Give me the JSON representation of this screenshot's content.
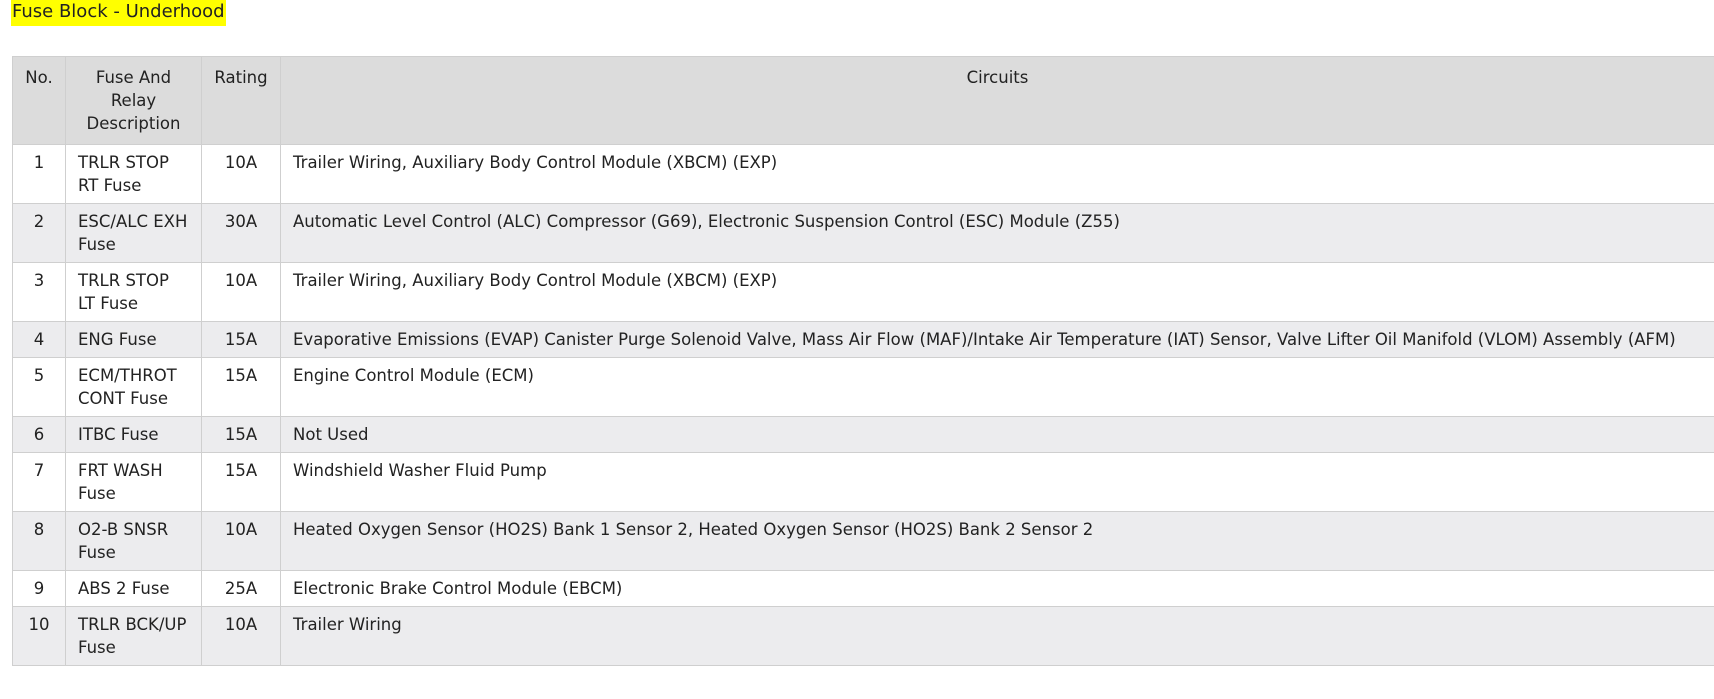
{
  "title": "Fuse Block - Underhood",
  "table": {
    "headers": [
      "No.",
      "Fuse And Relay Description",
      "Rating",
      "Circuits"
    ],
    "rows": [
      {
        "no": "1",
        "desc": "TRLR STOP RT Fuse",
        "rating": "10A",
        "circuits": "Trailer Wiring, Auxiliary Body Control Module (XBCM) (EXP)"
      },
      {
        "no": "2",
        "desc": "ESC/ALC EXH Fuse",
        "rating": "30A",
        "circuits": "Automatic Level Control (ALC) Compressor (G69), Electronic Suspension Control (ESC) Module (Z55)"
      },
      {
        "no": "3",
        "desc": "TRLR STOP LT Fuse",
        "rating": "10A",
        "circuits": "Trailer Wiring, Auxiliary Body Control Module (XBCM) (EXP)"
      },
      {
        "no": "4",
        "desc": "ENG Fuse",
        "rating": "15A",
        "circuits": "Evaporative Emissions (EVAP) Canister Purge Solenoid Valve, Mass Air Flow (MAF)/Intake Air Temperature (IAT) Sensor, Valve Lifter Oil Manifold (VLOM) Assembly (AFM)"
      },
      {
        "no": "5",
        "desc": "ECM/THROT CONT Fuse",
        "rating": "15A",
        "circuits": "Engine Control Module (ECM)"
      },
      {
        "no": "6",
        "desc": "ITBC Fuse",
        "rating": "15A",
        "circuits": "Not Used"
      },
      {
        "no": "7",
        "desc": "FRT WASH Fuse",
        "rating": "15A",
        "circuits": "Windshield Washer Fluid Pump"
      },
      {
        "no": "8",
        "desc": "O2-B SNSR Fuse",
        "rating": "10A",
        "circuits": "Heated Oxygen Sensor (HO2S) Bank 1 Sensor 2, Heated Oxygen Sensor (HO2S) Bank 2 Sensor 2"
      },
      {
        "no": "9",
        "desc": "ABS 2 Fuse",
        "rating": "25A",
        "circuits": "Electronic Brake Control Module (EBCM)"
      },
      {
        "no": "10",
        "desc": "TRLR BCK/UP Fuse",
        "rating": "10A",
        "circuits": "Trailer Wiring"
      }
    ]
  }
}
